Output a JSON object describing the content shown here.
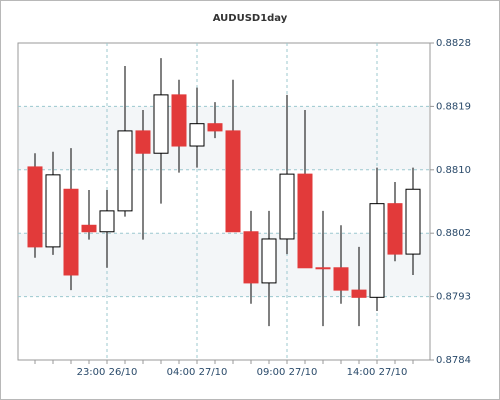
{
  "chart_data": {
    "type": "candlestick",
    "title": "AUDUSD1day",
    "categories": [
      "",
      "",
      "",
      "",
      "23:00 26/10",
      "",
      "",
      "",
      "",
      "04:00 27/10",
      "",
      "",
      "",
      "",
      "09:00 27/10",
      "",
      "",
      "",
      "",
      "14:00 27/10",
      "",
      ""
    ],
    "open": [
      0.88108,
      0.87997,
      0.88077,
      0.88027,
      0.88018,
      0.88047,
      0.88158,
      0.88127,
      0.88208,
      0.88137,
      0.88168,
      0.88158,
      0.88018,
      0.87947,
      0.88008,
      0.88098,
      0.87968,
      0.87968,
      0.87937,
      0.87927,
      0.88057,
      0.87987
    ],
    "high": [
      0.88127,
      0.88129,
      0.88134,
      0.88076,
      0.88076,
      0.88248,
      0.88187,
      0.88259,
      0.88229,
      0.88218,
      0.88198,
      0.88229,
      0.88047,
      0.88047,
      0.88208,
      0.88187,
      0.88047,
      0.88027,
      0.87997,
      0.88107,
      0.88087,
      0.88107
    ],
    "low": [
      0.87982,
      0.87986,
      0.87937,
      0.88007,
      0.87968,
      0.88039,
      0.88007,
      0.88057,
      0.881,
      0.88107,
      0.88148,
      0.88018,
      0.87918,
      0.87887,
      0.87987,
      0.87968,
      0.87887,
      0.87918,
      0.87887,
      0.87908,
      0.87977,
      0.87958
    ],
    "close": [
      0.87997,
      0.88097,
      0.87958,
      0.88018,
      0.88047,
      0.88158,
      0.88127,
      0.88208,
      0.88137,
      0.88168,
      0.88158,
      0.88018,
      0.87947,
      0.88008,
      0.88098,
      0.87968,
      0.87967,
      0.87937,
      0.87927,
      0.88057,
      0.87987,
      0.88077
    ],
    "down_color": "#e23a3a",
    "up_color": "#ffffff",
    "ylim": [
      0.8784,
      0.8828
    ],
    "yticks": [
      {
        "value": 0.8784,
        "label": "0.8784"
      },
      {
        "value": 0.87928,
        "label": "0.8793"
      },
      {
        "value": 0.88016,
        "label": "0.8802"
      },
      {
        "value": 0.88104,
        "label": "0.8810"
      },
      {
        "value": 0.88192,
        "label": "0.8819"
      },
      {
        "value": 0.8828,
        "label": "0.8828"
      }
    ],
    "grid": true
  }
}
